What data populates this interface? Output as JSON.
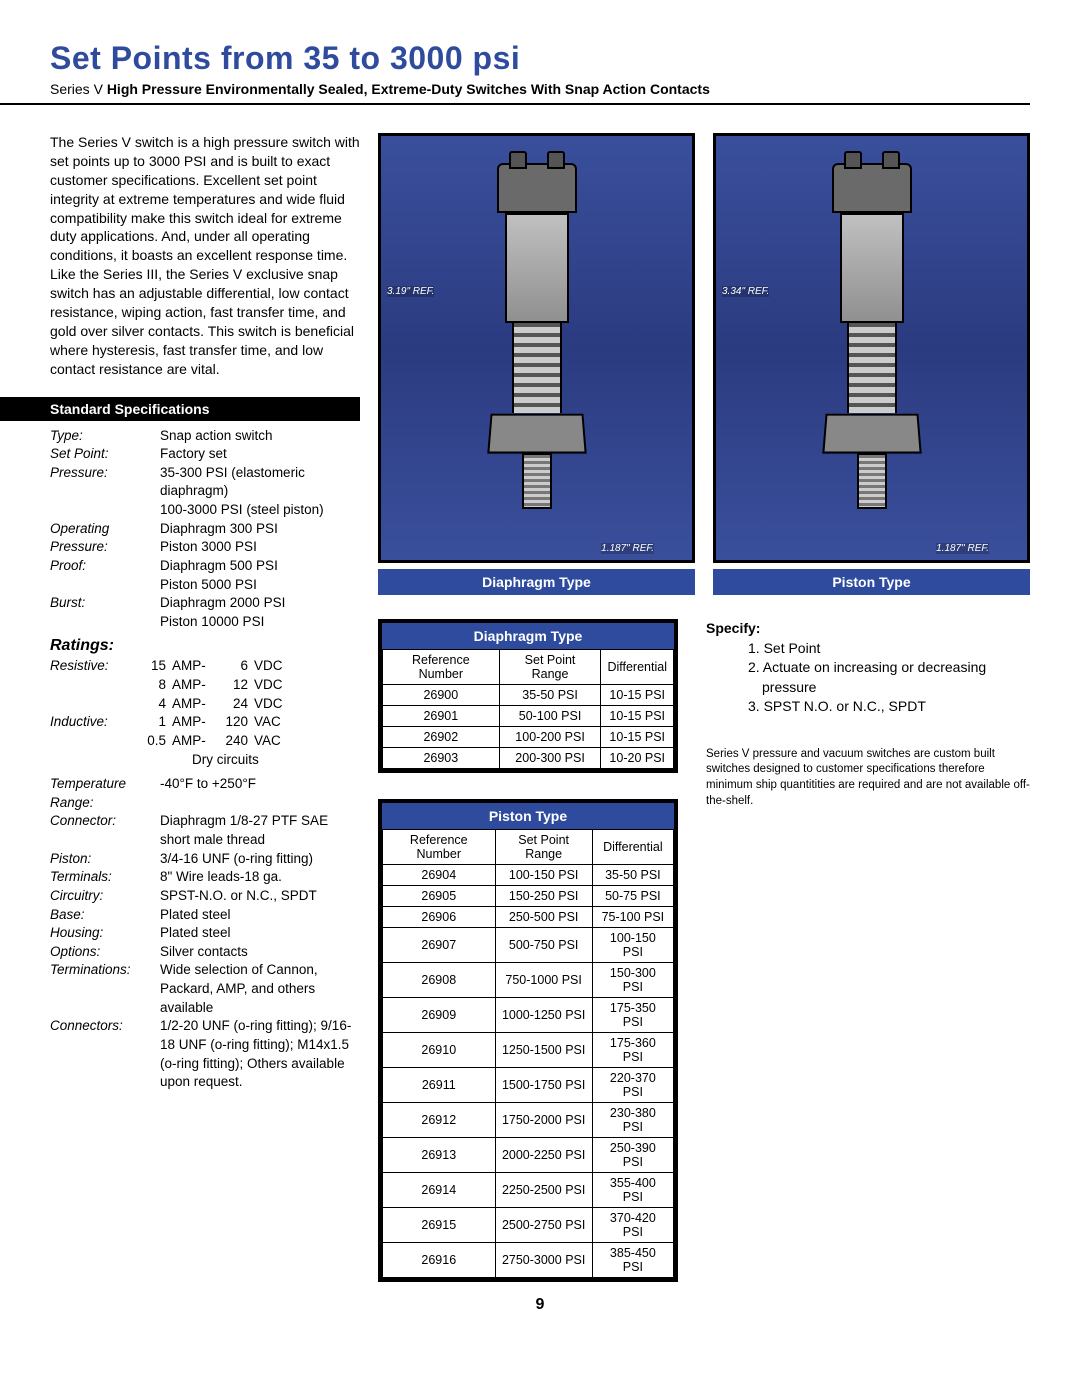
{
  "title": "Set Points from 35 to 3000 psi",
  "subtitle_prefix": "Series V ",
  "subtitle_bold": "High Pressure Environmentally Sealed, Extreme-Duty Switches With Snap Action Contacts",
  "intro": "The Series V switch is a high pressure switch with set points up to 3000 PSI and is built to exact customer specifications. Excellent set point integrity at extreme temperatures and wide fluid compatibility make this switch ideal for extreme duty applications. And, under all operating conditions, it boasts an excellent response time. Like the Series III, the Series V exclusive snap switch has an adjustable differential, low contact resistance, wiping action, fast transfer time, and gold over silver contacts. This switch is beneficial where hysteresis, fast transfer time, and low contact resistance are vital.",
  "specs_header": "Standard Specifications",
  "specs": [
    {
      "label": "Type:",
      "value": "Snap action switch"
    },
    {
      "label": "Set Point:",
      "value": "Factory set"
    },
    {
      "label": "Pressure:",
      "value": "35-300 PSI (elastomeric diaphragm)\n100-3000 PSI (steel piston)"
    },
    {
      "label": "Operating Pressure:",
      "value": "Diaphragm 300 PSI\nPiston 3000 PSI"
    },
    {
      "label": "Proof:",
      "value": "Diaphragm 500 PSI\nPiston 5000 PSI"
    },
    {
      "label": "Burst:",
      "value": "Diaphragm 2000 PSI\nPiston 10000 PSI"
    }
  ],
  "ratings_header": "Ratings:",
  "ratings": [
    {
      "label": "Resistive:",
      "n": "15",
      "u1": "AMP-",
      "n2": "6",
      "u2": "VDC"
    },
    {
      "label": "",
      "n": "8",
      "u1": "AMP-",
      "n2": "12",
      "u2": "VDC"
    },
    {
      "label": "",
      "n": "4",
      "u1": "AMP-",
      "n2": "24",
      "u2": "VDC"
    },
    {
      "label": "Inductive:",
      "n": "1",
      "u1": "AMP-",
      "n2": "120",
      "u2": "VAC"
    },
    {
      "label": "",
      "n": "0.5",
      "u1": "AMP-",
      "n2": "240",
      "u2": "VAC"
    }
  ],
  "ratings_tail": "Dry circuits",
  "specs2": [
    {
      "label": "Temperature Range:",
      "value": "-40°F to +250°F"
    },
    {
      "label": "Connector:",
      "value": "Diaphragm 1/8-27 PTF SAE short male thread"
    },
    {
      "label": "Piston:",
      "value": "3/4-16 UNF (o-ring fitting)"
    },
    {
      "label": "Terminals:",
      "value": "8\" Wire leads-18 ga."
    },
    {
      "label": "Circuitry:",
      "value": "SPST-N.O. or N.C., SPDT"
    },
    {
      "label": "Base:",
      "value": "Plated steel"
    },
    {
      "label": "Housing:",
      "value": "Plated steel"
    },
    {
      "label": "Options:",
      "value": "Silver contacts"
    },
    {
      "label": "Terminations:",
      "value": "Wide selection of Cannon, Packard, AMP, and others available"
    },
    {
      "label": "Connectors:",
      "value": "1/2-20 UNF (o-ring fitting); 9/16-18 UNF (o-ring fitting); M14x1.5 (o-ring fitting); Others available upon request."
    }
  ],
  "img_left": {
    "caption": "Diaphragm Type",
    "ref_top": "3.19\" REF.",
    "ref_bot": "1.187\" REF."
  },
  "img_right": {
    "caption": "Piston Type",
    "ref_top": "3.34\" REF.",
    "ref_bot": "1.187\" REF."
  },
  "table_diaphragm": {
    "title": "Diaphragm Type",
    "cols": [
      "Reference Number",
      "Set Point Range",
      "Differential"
    ],
    "rows": [
      [
        "26900",
        "35-50 PSI",
        "10-15 PSI"
      ],
      [
        "26901",
        "50-100 PSI",
        "10-15 PSI"
      ],
      [
        "26902",
        "100-200 PSI",
        "10-15 PSI"
      ],
      [
        "26903",
        "200-300 PSI",
        "10-20 PSI"
      ]
    ]
  },
  "table_piston": {
    "title": "Piston Type",
    "cols": [
      "Reference Number",
      "Set Point Range",
      "Differential"
    ],
    "rows": [
      [
        "26904",
        "100-150 PSI",
        "35-50 PSI"
      ],
      [
        "26905",
        "150-250 PSI",
        "50-75 PSI"
      ],
      [
        "26906",
        "250-500 PSI",
        "75-100 PSI"
      ],
      [
        "26907",
        "500-750 PSI",
        "100-150 PSI"
      ],
      [
        "26908",
        "750-1000 PSI",
        "150-300 PSI"
      ],
      [
        "26909",
        "1000-1250 PSI",
        "175-350 PSI"
      ],
      [
        "26910",
        "1250-1500 PSI",
        "175-360 PSI"
      ],
      [
        "26911",
        "1500-1750 PSI",
        "220-370 PSI"
      ],
      [
        "26912",
        "1750-2000 PSI",
        "230-380 PSI"
      ],
      [
        "26913",
        "2000-2250 PSI",
        "250-390 PSI"
      ],
      [
        "26914",
        "2250-2500 PSI",
        "355-400 PSI"
      ],
      [
        "26915",
        "2500-2750 PSI",
        "370-420 PSI"
      ],
      [
        "26916",
        "2750-3000 PSI",
        "385-450 PSI"
      ]
    ]
  },
  "specify": {
    "label": "Specify:",
    "items": [
      "1. Set Point",
      "2. Actuate on increasing or decreasing pressure",
      "3. SPST N.O. or N.C., SPDT"
    ]
  },
  "footnote": "Series V pressure and vacuum switches are custom built switches designed to customer specifications therefore minimum ship quantitities are required and are not available off-the-shelf.",
  "page_number": "9",
  "colors": {
    "brand": "#2e4b9e",
    "rule": "#000000"
  }
}
